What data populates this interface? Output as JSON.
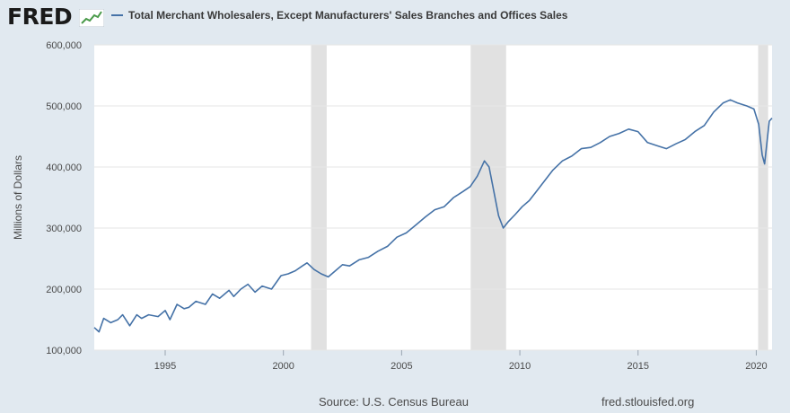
{
  "header": {
    "logo_text": "FRED"
  },
  "source_text": "Source: U.S. Census Bureau",
  "site_text": "fred.stlouisfed.org",
  "colors": {
    "line": "#4572a7",
    "recession": "#e1e1e1",
    "plot_bg": "#ffffff",
    "page_bg": "#e1e9f0",
    "grid": "#e6e6e6"
  },
  "chart_data": {
    "type": "line",
    "title": "Total Merchant Wholesalers, Except Manufacturers' Sales Branches and Offices Sales",
    "ylabel": "Millions of Dollars",
    "xlabel": "",
    "xlim": [
      1992.0,
      2020.667
    ],
    "ylim": [
      100000,
      600000
    ],
    "x_ticks": [
      1995,
      2000,
      2005,
      2010,
      2015,
      2020
    ],
    "x_tick_labels": [
      "1995",
      "2000",
      "2005",
      "2010",
      "2015",
      "2020"
    ],
    "y_ticks": [
      100000,
      200000,
      300000,
      400000,
      500000,
      600000
    ],
    "y_tick_labels": [
      "100,000",
      "200,000",
      "300,000",
      "400,000",
      "500,000",
      "600,000"
    ],
    "grid": true,
    "recessions": [
      [
        2001.17,
        2001.83
      ],
      [
        2007.92,
        2009.42
      ],
      [
        2020.08,
        2020.5
      ]
    ],
    "series": [
      {
        "name": "Total Merchant Wholesalers, Except Manufacturers' Sales Branches and Offices Sales",
        "points": [
          [
            1992.0,
            137000
          ],
          [
            1992.2,
            130000
          ],
          [
            1992.4,
            152000
          ],
          [
            1992.7,
            145000
          ],
          [
            1993.0,
            150000
          ],
          [
            1993.2,
            158000
          ],
          [
            1993.5,
            140000
          ],
          [
            1993.8,
            158000
          ],
          [
            1994.0,
            152000
          ],
          [
            1994.3,
            158000
          ],
          [
            1994.7,
            155000
          ],
          [
            1995.0,
            165000
          ],
          [
            1995.2,
            150000
          ],
          [
            1995.5,
            175000
          ],
          [
            1995.8,
            168000
          ],
          [
            1996.0,
            170000
          ],
          [
            1996.3,
            180000
          ],
          [
            1996.7,
            175000
          ],
          [
            1997.0,
            192000
          ],
          [
            1997.3,
            185000
          ],
          [
            1997.7,
            198000
          ],
          [
            1997.9,
            188000
          ],
          [
            1998.2,
            200000
          ],
          [
            1998.5,
            208000
          ],
          [
            1998.8,
            195000
          ],
          [
            1999.1,
            205000
          ],
          [
            1999.5,
            200000
          ],
          [
            1999.9,
            222000
          ],
          [
            2000.2,
            225000
          ],
          [
            2000.5,
            230000
          ],
          [
            2000.8,
            238000
          ],
          [
            2001.0,
            243000
          ],
          [
            2001.3,
            232000
          ],
          [
            2001.6,
            225000
          ],
          [
            2001.9,
            220000
          ],
          [
            2002.2,
            230000
          ],
          [
            2002.5,
            240000
          ],
          [
            2002.8,
            238000
          ],
          [
            2003.2,
            248000
          ],
          [
            2003.6,
            252000
          ],
          [
            2004.0,
            262000
          ],
          [
            2004.4,
            270000
          ],
          [
            2004.8,
            285000
          ],
          [
            2005.2,
            292000
          ],
          [
            2005.6,
            305000
          ],
          [
            2006.0,
            318000
          ],
          [
            2006.4,
            330000
          ],
          [
            2006.8,
            335000
          ],
          [
            2007.2,
            350000
          ],
          [
            2007.6,
            360000
          ],
          [
            2007.9,
            368000
          ],
          [
            2008.2,
            385000
          ],
          [
            2008.5,
            410000
          ],
          [
            2008.7,
            400000
          ],
          [
            2008.9,
            360000
          ],
          [
            2009.1,
            320000
          ],
          [
            2009.3,
            300000
          ],
          [
            2009.5,
            310000
          ],
          [
            2009.8,
            322000
          ],
          [
            2010.1,
            335000
          ],
          [
            2010.4,
            345000
          ],
          [
            2010.7,
            360000
          ],
          [
            2011.0,
            375000
          ],
          [
            2011.4,
            395000
          ],
          [
            2011.8,
            410000
          ],
          [
            2012.2,
            418000
          ],
          [
            2012.6,
            430000
          ],
          [
            2013.0,
            432000
          ],
          [
            2013.4,
            440000
          ],
          [
            2013.8,
            450000
          ],
          [
            2014.2,
            455000
          ],
          [
            2014.6,
            462000
          ],
          [
            2015.0,
            458000
          ],
          [
            2015.4,
            440000
          ],
          [
            2015.8,
            435000
          ],
          [
            2016.2,
            430000
          ],
          [
            2016.6,
            438000
          ],
          [
            2017.0,
            445000
          ],
          [
            2017.4,
            458000
          ],
          [
            2017.8,
            468000
          ],
          [
            2018.2,
            490000
          ],
          [
            2018.6,
            505000
          ],
          [
            2018.9,
            510000
          ],
          [
            2019.2,
            505000
          ],
          [
            2019.6,
            500000
          ],
          [
            2019.9,
            495000
          ],
          [
            2020.1,
            470000
          ],
          [
            2020.25,
            420000
          ],
          [
            2020.35,
            405000
          ],
          [
            2020.45,
            440000
          ],
          [
            2020.55,
            475000
          ],
          [
            2020.667,
            480000
          ]
        ]
      }
    ]
  }
}
